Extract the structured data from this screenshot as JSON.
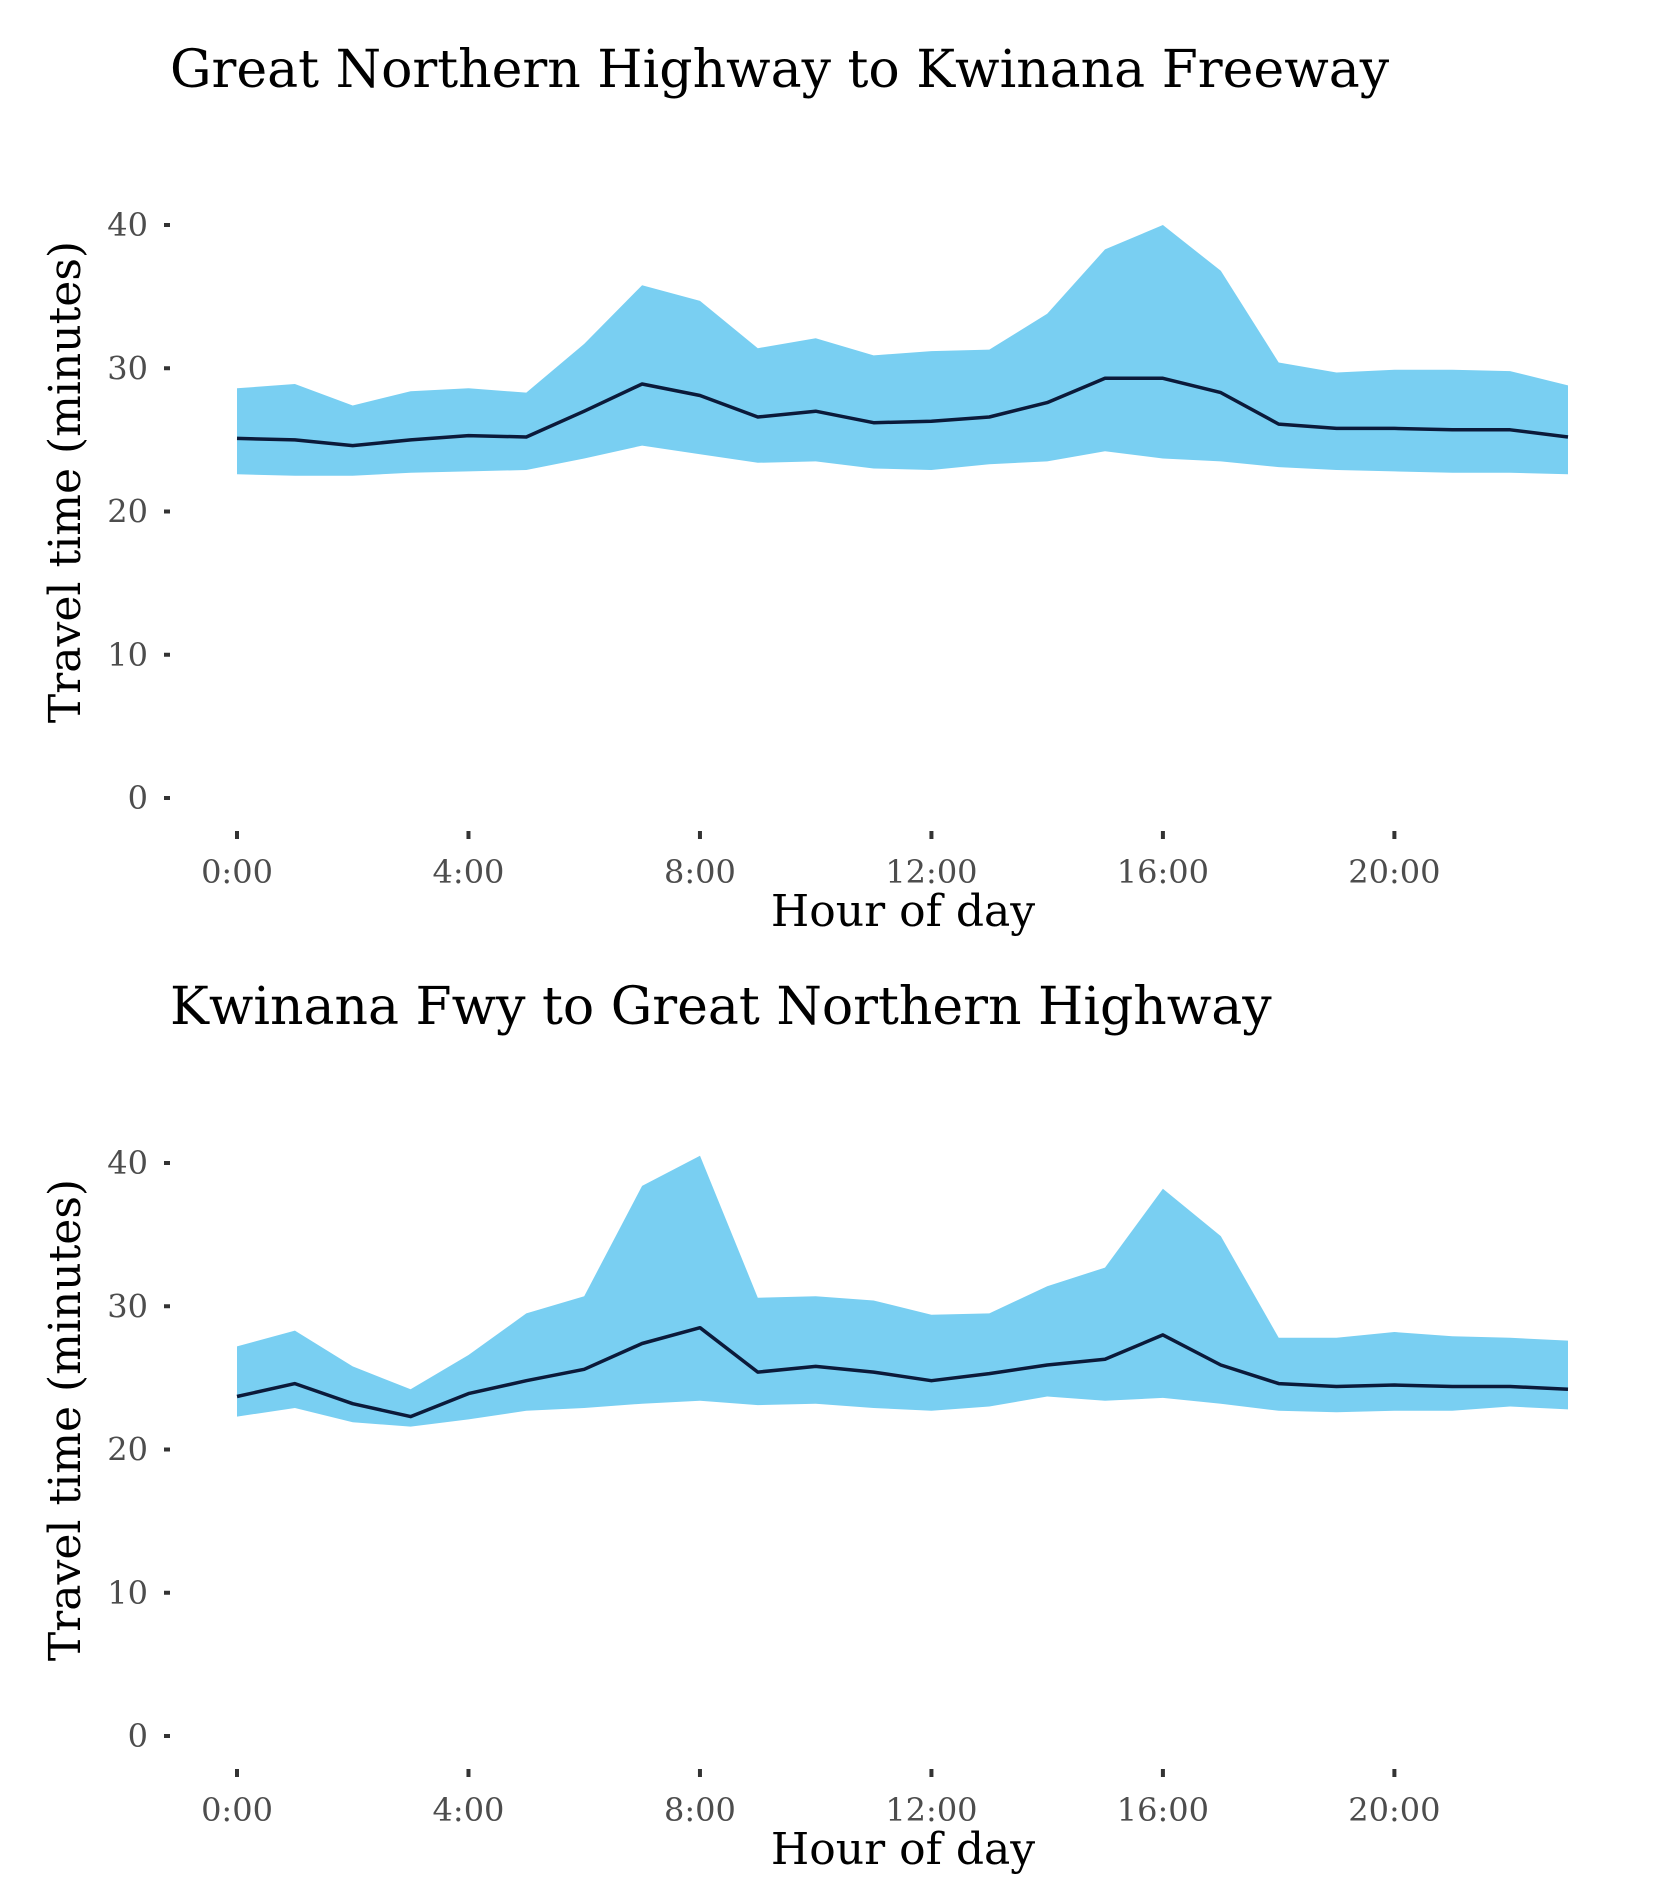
{
  "colors": {
    "band_fill": "#79cff2",
    "line": "#0b1a3a",
    "background": "#ffffff"
  },
  "chart_data": [
    {
      "type": "area",
      "title": "Great Northern Highway to Kwinana Freeway",
      "xlabel": "Hour of day",
      "ylabel": "Travel time (minutes)",
      "xlim": [
        0,
        23
      ],
      "ylim": [
        0,
        40
      ],
      "x_ticks": [
        0,
        4,
        8,
        12,
        16,
        20
      ],
      "x_tick_labels": [
        "0:00",
        "4:00",
        "8:00",
        "12:00",
        "16:00",
        "20:00"
      ],
      "y_ticks": [
        0,
        10,
        20,
        30,
        40
      ],
      "y_tick_labels": [
        "0",
        "10",
        "20",
        "30",
        "40"
      ],
      "grid": false,
      "x": [
        0,
        1,
        2,
        3,
        4,
        5,
        6,
        7,
        8,
        9,
        10,
        11,
        12,
        13,
        14,
        15,
        16,
        17,
        18,
        19,
        20,
        21,
        22,
        23
      ],
      "lower": [
        22.6,
        22.5,
        22.5,
        22.7,
        22.8,
        22.9,
        23.7,
        24.6,
        24.0,
        23.4,
        23.5,
        23.0,
        22.9,
        23.3,
        23.5,
        24.2,
        23.7,
        23.5,
        23.1,
        22.9,
        22.8,
        22.7,
        22.7,
        22.6
      ],
      "upper": [
        28.6,
        28.9,
        27.4,
        28.4,
        28.6,
        28.3,
        31.7,
        35.8,
        34.7,
        31.4,
        32.1,
        30.9,
        31.2,
        31.3,
        33.8,
        38.3,
        40.0,
        36.8,
        30.4,
        29.7,
        29.9,
        29.9,
        29.8,
        28.8
      ],
      "median": [
        25.1,
        25.0,
        24.6,
        25.0,
        25.3,
        25.2,
        27.0,
        28.9,
        28.1,
        26.6,
        27.0,
        26.2,
        26.3,
        26.6,
        27.6,
        29.3,
        29.3,
        28.3,
        26.1,
        25.8,
        25.8,
        25.7,
        25.7,
        25.2
      ]
    },
    {
      "type": "area",
      "title": "Kwinana Fwy to Great Northern Highway",
      "xlabel": "Hour of day",
      "ylabel": "Travel time (minutes)",
      "xlim": [
        0,
        23
      ],
      "ylim": [
        0,
        40
      ],
      "x_ticks": [
        0,
        4,
        8,
        12,
        16,
        20
      ],
      "x_tick_labels": [
        "0:00",
        "4:00",
        "8:00",
        "12:00",
        "16:00",
        "20:00"
      ],
      "y_ticks": [
        0,
        10,
        20,
        30,
        40
      ],
      "y_tick_labels": [
        "0",
        "10",
        "20",
        "30",
        "40"
      ],
      "grid": false,
      "x": [
        0,
        1,
        2,
        3,
        4,
        5,
        6,
        7,
        8,
        9,
        10,
        11,
        12,
        13,
        14,
        15,
        16,
        17,
        18,
        19,
        20,
        21,
        22,
        23
      ],
      "lower": [
        22.3,
        22.9,
        21.9,
        21.6,
        22.1,
        22.7,
        22.9,
        23.2,
        23.4,
        23.1,
        23.2,
        22.9,
        22.7,
        23.0,
        23.7,
        23.4,
        23.6,
        23.2,
        22.7,
        22.6,
        22.7,
        22.7,
        23.0,
        22.8
      ],
      "upper": [
        27.2,
        28.3,
        25.8,
        24.2,
        26.6,
        29.5,
        30.7,
        38.4,
        40.5,
        30.6,
        30.7,
        30.4,
        29.4,
        29.5,
        31.4,
        32.7,
        38.2,
        34.9,
        27.8,
        27.8,
        28.2,
        27.9,
        27.8,
        27.6
      ],
      "median": [
        23.7,
        24.6,
        23.2,
        22.3,
        23.9,
        24.8,
        25.6,
        27.4,
        28.5,
        25.4,
        25.8,
        25.4,
        24.8,
        25.3,
        25.9,
        26.3,
        28.0,
        25.9,
        24.6,
        24.4,
        24.5,
        24.4,
        24.4,
        24.2
      ]
    }
  ]
}
